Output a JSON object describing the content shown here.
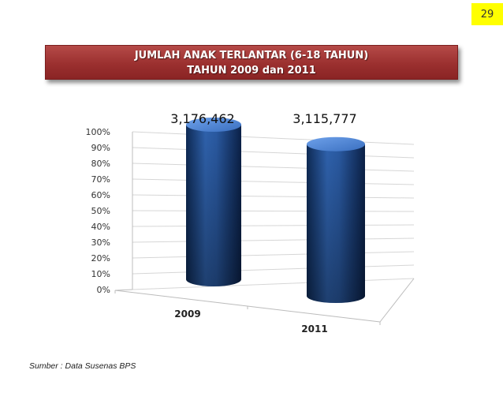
{
  "page_number": "29",
  "title": {
    "line1": "JUMLAH ANAK TERLANTAR (6-18 TAHUN)",
    "line2": "TAHUN 2009 dan 2011"
  },
  "source": "Sumber : Data Susenas BPS",
  "chart_data": {
    "type": "bar",
    "style": "3d-cylinder",
    "categories": [
      "2009",
      "2011"
    ],
    "values": [
      3176462,
      3115777
    ],
    "data_labels": [
      "3,176,462",
      "3,115,777"
    ],
    "y_ticks": [
      "0%",
      "10%",
      "20%",
      "30%",
      "40%",
      "50%",
      "60%",
      "70%",
      "80%",
      "90%",
      "100%"
    ],
    "ylim": [
      0,
      100
    ],
    "grid": true,
    "legend": "none",
    "bar_color": "#1f4e8c"
  }
}
